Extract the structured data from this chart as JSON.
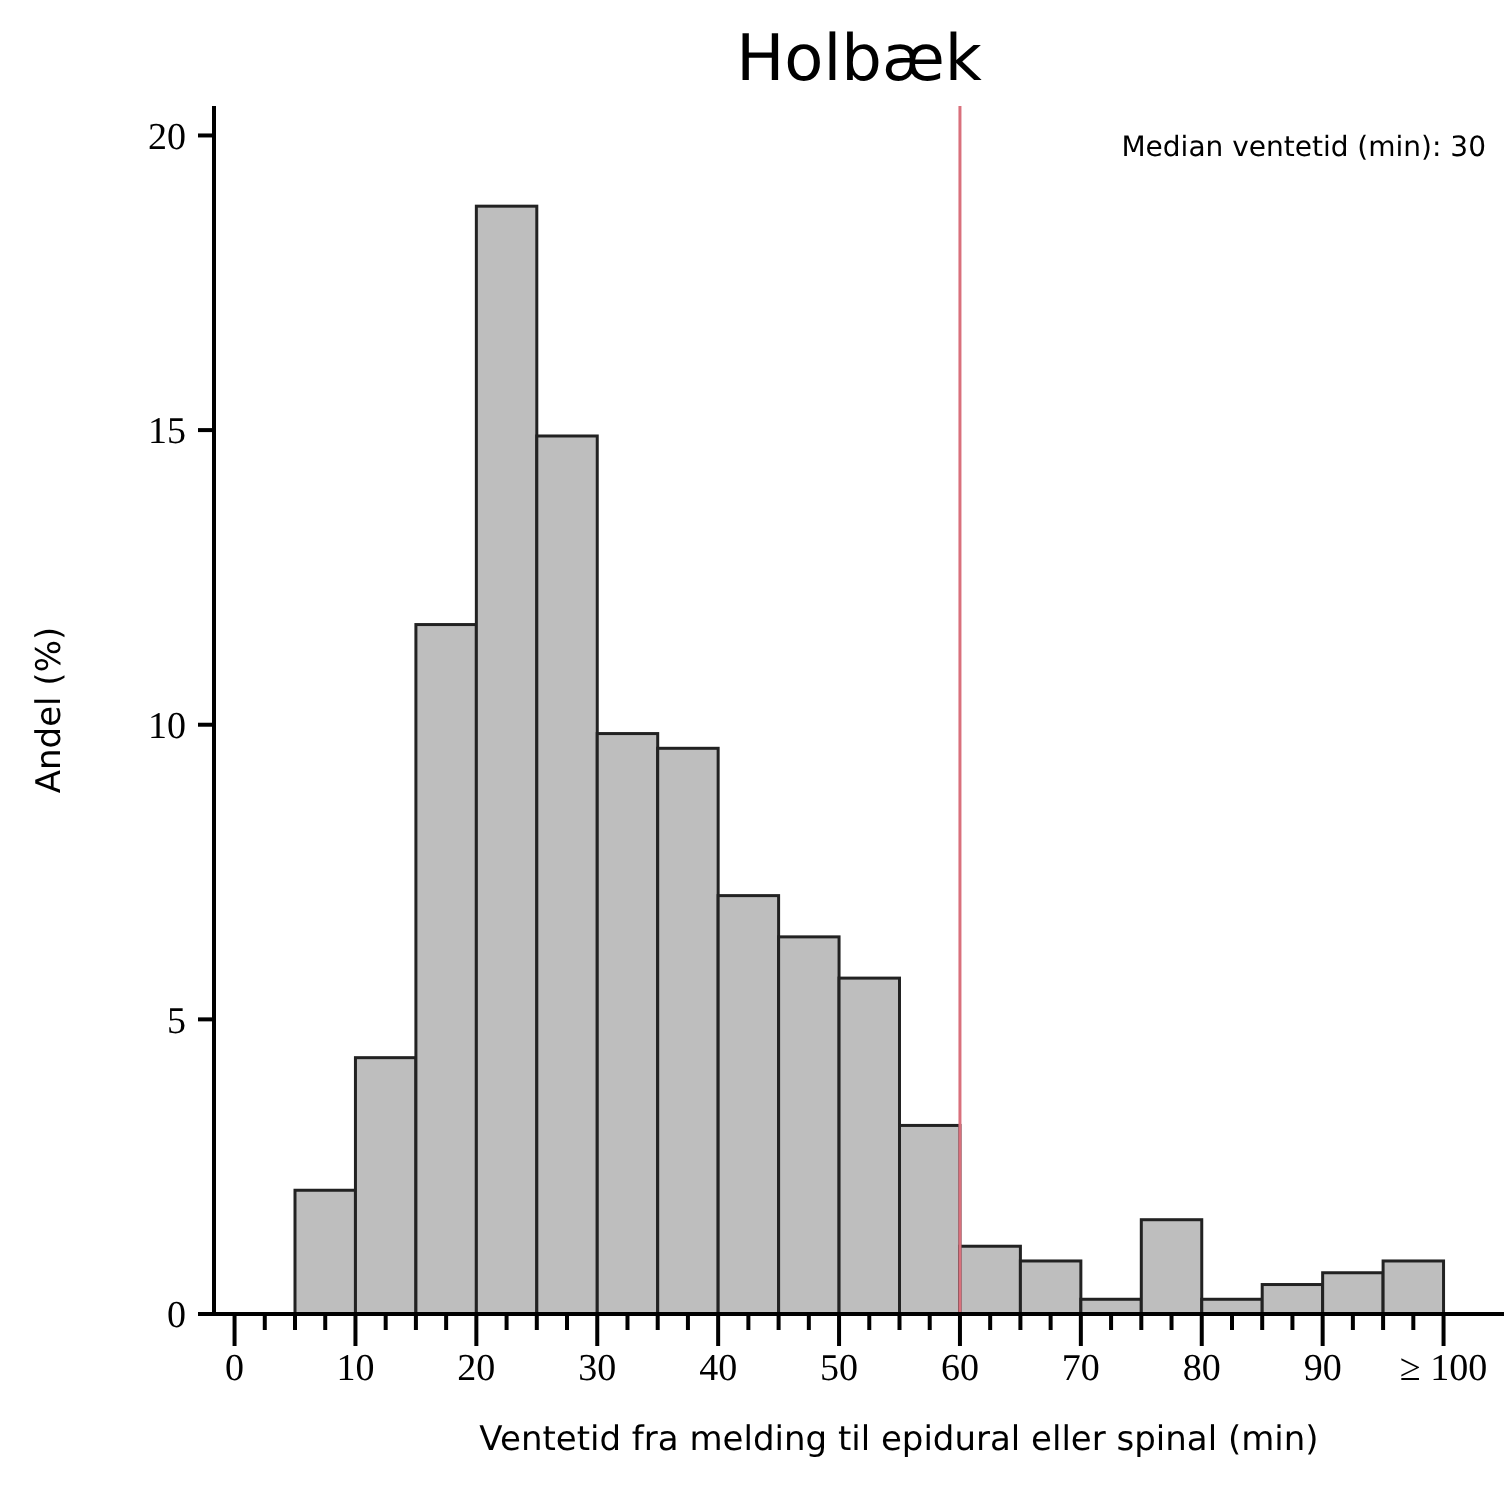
{
  "chart_data": {
    "type": "histogram",
    "title": "Holbæk",
    "xlabel": "Ventetid fra melding til epidural eller spinal (min)",
    "ylabel": "Andel (%)",
    "bins": [
      0,
      5,
      10,
      15,
      20,
      25,
      30,
      35,
      40,
      45,
      50,
      55,
      60,
      65,
      70,
      75,
      80,
      85,
      90,
      95,
      100
    ],
    "values": [
      0,
      2.1,
      4.35,
      11.7,
      18.8,
      14.9,
      9.85,
      9.6,
      7.1,
      6.4,
      5.7,
      3.2,
      1.15,
      0.9,
      0.25,
      1.6,
      0.25,
      0.5,
      0.7,
      0.9
    ],
    "color": "#bebebe",
    "xlim": [
      -1.7,
      105
    ],
    "xticks": [
      0,
      {
        "value": 2.5,
        "label": null
      },
      {
        "value": 5,
        "label": null
      },
      {
        "value": 7.5,
        "label": null
      },
      10,
      {
        "value": 12.5,
        "label": null
      },
      {
        "value": 15,
        "label": null
      },
      {
        "value": 17.5,
        "label": null
      },
      20,
      {
        "value": 22.5,
        "label": null
      },
      {
        "value": 25,
        "label": null
      },
      {
        "value": 27.5,
        "label": null
      },
      30,
      {
        "value": 32.5,
        "label": null
      },
      {
        "value": 35,
        "label": null
      },
      {
        "value": 37.5,
        "label": null
      },
      40,
      {
        "value": 42.5,
        "label": null
      },
      {
        "value": 45,
        "label": null
      },
      {
        "value": 47.5,
        "label": null
      },
      50,
      {
        "value": 52.5,
        "label": null
      },
      {
        "value": 55,
        "label": null
      },
      {
        "value": 57.5,
        "label": null
      },
      60,
      {
        "value": 62.5,
        "label": null
      },
      {
        "value": 65,
        "label": null
      },
      {
        "value": 67.5,
        "label": null
      },
      70,
      {
        "value": 72.5,
        "label": null
      },
      {
        "value": 75,
        "label": null
      },
      {
        "value": 77.5,
        "label": null
      },
      80,
      {
        "value": 82.5,
        "label": null
      },
      {
        "value": 85,
        "label": null
      },
      {
        "value": 87.5,
        "label": null
      },
      90,
      {
        "value": 92.5,
        "label": null
      },
      {
        "value": 95,
        "label": null
      },
      {
        "value": 97.5,
        "label": null
      },
      {
        "value": 100,
        "label": "≥ 100"
      }
    ],
    "ylim": [
      0,
      20.5
    ],
    "yticks": [
      0,
      5,
      10,
      15,
      20
    ],
    "ref_lines": [
      {
        "axis": "x",
        "value": 60,
        "color": "#d9707c"
      }
    ],
    "annotations": [
      "Median ventetid (min): 30"
    ],
    "grid": false
  }
}
